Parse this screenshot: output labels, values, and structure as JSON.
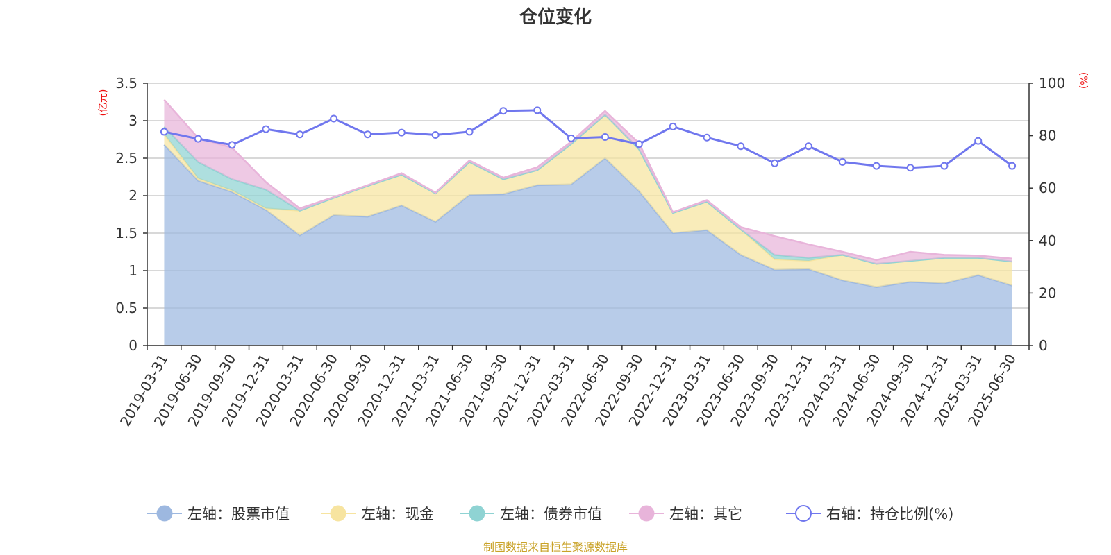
{
  "chart_data": {
    "type": "area",
    "title": "仓位变化",
    "left_unit": "(亿元)",
    "right_unit": "(%)",
    "ylim_left": [
      0,
      3.5
    ],
    "left_ticks": [
      "0",
      "0.5",
      "1",
      "1.5",
      "2",
      "2.5",
      "3",
      "3.5"
    ],
    "ylim_right": [
      0,
      100
    ],
    "right_ticks": [
      "0",
      "20",
      "40",
      "60",
      "80",
      "100"
    ],
    "grid": true,
    "legend_position": "bottom",
    "categories": [
      "2019-03-31",
      "2019-06-30",
      "2019-09-30",
      "2019-12-31",
      "2020-03-31",
      "2020-06-30",
      "2020-09-30",
      "2020-12-31",
      "2021-03-31",
      "2021-06-30",
      "2021-09-30",
      "2021-12-31",
      "2022-03-31",
      "2022-06-30",
      "2022-09-30",
      "2022-12-31",
      "2023-03-31",
      "2023-06-30",
      "2023-09-30",
      "2023-12-31",
      "2024-03-31",
      "2024-06-30",
      "2024-09-30",
      "2024-12-31",
      "2025-03-31",
      "2025-06-30"
    ],
    "series": [
      {
        "name": "左轴：股票市值",
        "axis": "left",
        "stack": true,
        "color": "#9db8e0",
        "values": [
          2.68,
          2.2,
          2.05,
          1.81,
          1.47,
          1.74,
          1.72,
          1.87,
          1.65,
          2.01,
          2.02,
          2.14,
          2.15,
          2.5,
          2.06,
          1.5,
          1.54,
          1.21,
          1.01,
          1.02,
          0.87,
          0.78,
          0.85,
          0.83,
          0.94,
          0.8
        ]
      },
      {
        "name": "左轴：现金",
        "axis": "left",
        "stack": true,
        "color": "#f7e4a0",
        "values": [
          0.14,
          0.03,
          0.02,
          0.02,
          0.33,
          0.23,
          0.41,
          0.41,
          0.38,
          0.44,
          0.2,
          0.2,
          0.54,
          0.58,
          0.56,
          0.27,
          0.38,
          0.34,
          0.14,
          0.11,
          0.34,
          0.31,
          0.28,
          0.34,
          0.23,
          0.32
        ]
      },
      {
        "name": "左轴：债券市值",
        "axis": "left",
        "stack": true,
        "color": "#8fd3d3",
        "values": [
          0.1,
          0.22,
          0.15,
          0.25,
          0,
          0,
          0,
          0,
          0,
          0,
          0,
          0,
          0,
          0,
          0,
          0,
          0,
          0,
          0.06,
          0.04,
          0,
          0,
          0,
          0,
          0,
          0
        ]
      },
      {
        "name": "左轴：其它",
        "axis": "left",
        "stack": true,
        "color": "#e8b4da",
        "values": [
          0.36,
          0.32,
          0.42,
          0.1,
          0.03,
          0.01,
          0.01,
          0.02,
          0.01,
          0.02,
          0.02,
          0.04,
          0.03,
          0.05,
          0.08,
          0.01,
          0.02,
          0.03,
          0.25,
          0.18,
          0.04,
          0.05,
          0.12,
          0.04,
          0.03,
          0.04
        ]
      },
      {
        "name": "右轴：持仓比例(%)",
        "axis": "right",
        "stack": false,
        "color": "#7077ee",
        "values": [
          81.5,
          78.8,
          76.5,
          82.5,
          80.5,
          86.5,
          80.5,
          81.2,
          80.3,
          81.5,
          89.5,
          89.7,
          79,
          79.5,
          76.8,
          83.5,
          79.3,
          76,
          69.5,
          76,
          70,
          68.5,
          67.8,
          68.5,
          78,
          68.5
        ]
      }
    ],
    "source": "制图数据来自恒生聚源数据库"
  }
}
